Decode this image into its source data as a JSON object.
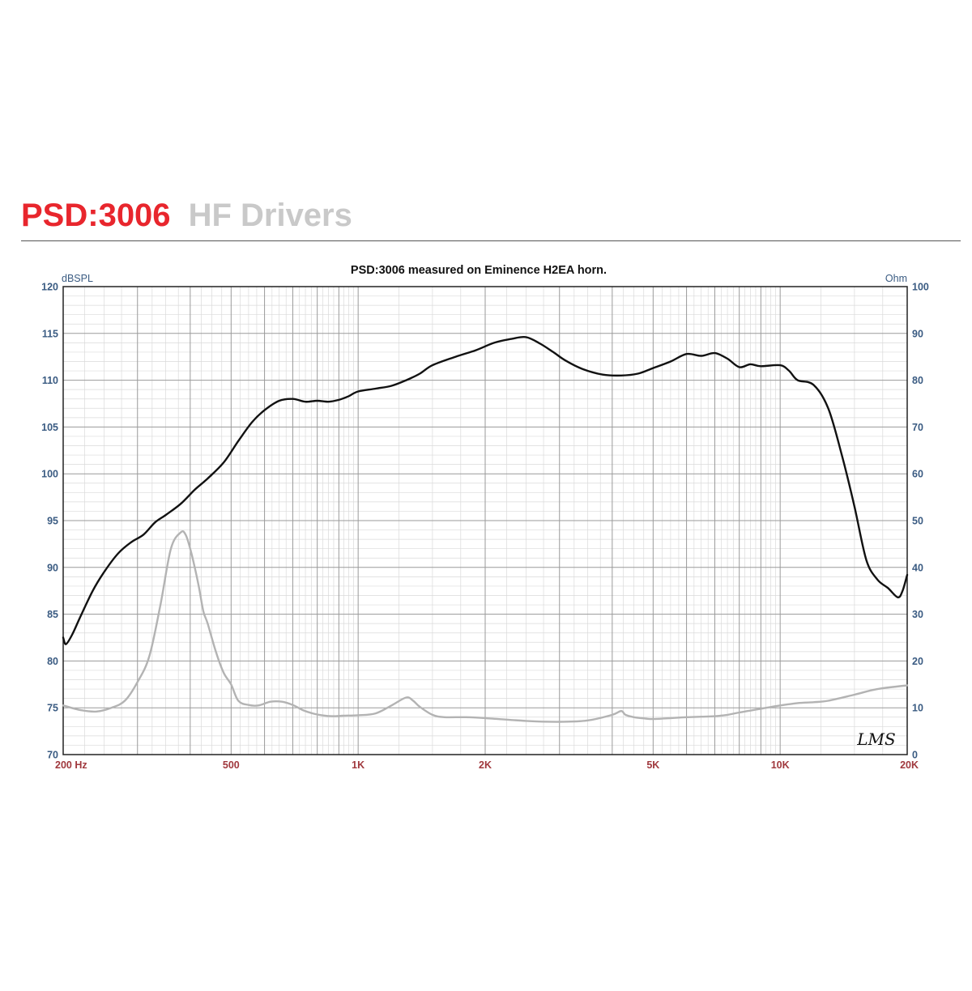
{
  "header": {
    "model": "PSD:3006",
    "category": "HF Drivers"
  },
  "logo_text": "LMS",
  "colors": {
    "model": "#e8262d",
    "category": "#c9c9c9",
    "left_axis": "#3a5b82",
    "x_axis": "#a0383d",
    "spl_curve": "#111111",
    "impedance_curve": "#b3b3b3"
  },
  "chart_data": {
    "type": "line",
    "title": "PSD:3006 measured on Eminence H2EA horn.",
    "xscale": "log",
    "xlim": [
      200,
      20000
    ],
    "x_tick_labels": [
      {
        "value": 200,
        "label": "200  Hz"
      },
      {
        "value": 500,
        "label": "500"
      },
      {
        "value": 1000,
        "label": "1K"
      },
      {
        "value": 2000,
        "label": "2K"
      },
      {
        "value": 5000,
        "label": "5K"
      },
      {
        "value": 10000,
        "label": "10K"
      },
      {
        "value": 20000,
        "label": "20K"
      }
    ],
    "y_left": {
      "label": "dBSPL",
      "lim": [
        70,
        120
      ],
      "ticks": [
        120,
        115,
        110,
        105,
        100,
        95,
        90,
        85,
        80,
        75,
        70
      ]
    },
    "y_right": {
      "label": "Ohm",
      "lim": [
        0,
        100
      ],
      "ticks": [
        100,
        90,
        80,
        70,
        60,
        50,
        40,
        30,
        20,
        10,
        0
      ]
    },
    "grid": true,
    "series": [
      {
        "axis": "left",
        "x": [
          200,
          203,
          210,
          220,
          235,
          250,
          270,
          290,
          310,
          330,
          350,
          380,
          410,
          440,
          480,
          520,
          560,
          600,
          650,
          700,
          750,
          800,
          850,
          900,
          950,
          1000,
          1100,
          1200,
          1300,
          1400,
          1500,
          1700,
          1900,
          2100,
          2300,
          2500,
          2700,
          2900,
          3100,
          3400,
          3800,
          4200,
          4600,
          5000,
          5500,
          6000,
          6500,
          7000,
          7500,
          8000,
          8500,
          9000,
          10000,
          10500,
          11000,
          12000,
          13000,
          14000,
          15000,
          16000,
          17000,
          18000,
          19000,
          19500,
          20000
        ],
        "y": [
          82.5,
          81.8,
          82.8,
          84.8,
          87.5,
          89.5,
          91.5,
          92.7,
          93.5,
          94.8,
          95.6,
          96.8,
          98.3,
          99.5,
          101.2,
          103.5,
          105.5,
          106.8,
          107.8,
          108,
          107.7,
          107.8,
          107.7,
          107.9,
          108.3,
          108.8,
          109.1,
          109.4,
          110,
          110.7,
          111.6,
          112.5,
          113.2,
          114,
          114.4,
          114.6,
          113.9,
          113,
          112.1,
          111.2,
          110.6,
          110.5,
          110.7,
          111.3,
          112,
          112.8,
          112.6,
          112.9,
          112.3,
          111.4,
          111.7,
          111.5,
          111.6,
          111,
          110,
          109.5,
          107,
          102,
          96.5,
          90.8,
          88.7,
          87.8,
          86.8,
          87.5,
          89.2
        ]
      },
      {
        "axis": "right",
        "x": [
          200,
          220,
          240,
          260,
          280,
          300,
          320,
          340,
          360,
          380,
          390,
          400,
          410,
          420,
          430,
          440,
          460,
          480,
          500,
          520,
          550,
          580,
          620,
          660,
          700,
          740,
          780,
          820,
          870,
          920,
          1000,
          1100,
          1200,
          1300,
          1350,
          1400,
          1500,
          1600,
          1800,
          2000,
          2500,
          3000,
          3500,
          4000,
          4200,
          4300,
          4500,
          4800,
          5000,
          5500,
          6000,
          6500,
          7000,
          7500,
          8000,
          9000,
          10000,
          11000,
          12000,
          13000,
          15000,
          17000,
          20000
        ],
        "y": [
          10.5,
          9.5,
          9.2,
          10,
          11.5,
          15.5,
          21,
          32,
          44,
          47.5,
          47,
          44,
          40,
          35.5,
          30.5,
          28,
          22,
          17.5,
          15,
          11.5,
          10.6,
          10.5,
          11.3,
          11.3,
          10.6,
          9.5,
          8.8,
          8.4,
          8.2,
          8.3,
          8.4,
          8.8,
          10.5,
          12.2,
          11.5,
          10.2,
          8.5,
          8,
          8,
          7.8,
          7.2,
          7,
          7.3,
          8.5,
          9.3,
          8.5,
          8,
          7.7,
          7.6,
          7.8,
          8,
          8.1,
          8.2,
          8.5,
          9,
          9.8,
          10.5,
          11,
          11.2,
          11.5,
          12.8,
          14,
          14.8
        ]
      }
    ]
  }
}
